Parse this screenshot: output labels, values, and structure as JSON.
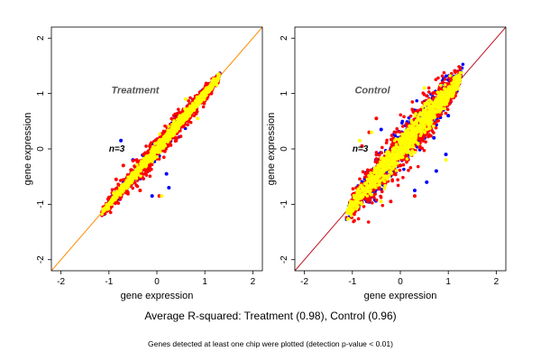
{
  "figure": {
    "summary": "Average R-squared: Treatment (0.98), Control (0.96)",
    "note": "Genes detected at least one chip were plotted (detection p-value < 0.01)"
  },
  "colors": {
    "point_series": [
      "#0000ff",
      "#ff0000",
      "#ffff00"
    ],
    "diagonal": "#ff8c00",
    "diagonal_control": "#c01020"
  },
  "chart_data": [
    {
      "type": "scatter",
      "title": "Treatment",
      "annotation": "n=3",
      "xlabel": "gene expression",
      "ylabel": "gene expression",
      "xlim": [
        -2.2,
        2.2
      ],
      "ylim": [
        -2.2,
        2.2
      ],
      "xticks": [
        -2,
        -1,
        0,
        1,
        2
      ],
      "yticks": [
        -2,
        -1,
        0,
        1,
        2
      ],
      "grid": false,
      "reference_line": "y = x",
      "series_colors": [
        "blue",
        "red",
        "yellow"
      ],
      "point_cloud": {
        "x_range": [
          -1.15,
          1.3
        ],
        "points_per_color": 1000
      },
      "spread": {
        "blue": 0.06,
        "red": 0.1,
        "yellow": 0.05
      },
      "outliers": {
        "blue": [
          [
            -0.75,
            0.15
          ],
          [
            -0.1,
            -0.85
          ],
          [
            0.25,
            -0.7
          ],
          [
            -0.5,
            -0.2
          ],
          [
            0.2,
            -0.45
          ]
        ],
        "red": [
          [
            -0.85,
            -0.55
          ],
          [
            -0.6,
            -0.6
          ],
          [
            -0.35,
            -0.75
          ],
          [
            0.05,
            -0.85
          ],
          [
            -0.7,
            -0.3
          ],
          [
            0.4,
            0.15
          ]
        ],
        "yellow": [
          [
            0.1,
            -0.85
          ],
          [
            0.85,
            0.55
          ],
          [
            0.6,
            0.9
          ],
          [
            -0.9,
            -0.8
          ],
          [
            1.25,
            1.15
          ]
        ]
      }
    },
    {
      "type": "scatter",
      "title": "Control",
      "annotation": "n=3",
      "xlabel": "gene expression",
      "ylabel": "gene expression",
      "xlim": [
        -2.2,
        2.2
      ],
      "ylim": [
        -2.2,
        2.2
      ],
      "xticks": [
        -2,
        -1,
        0,
        1,
        2
      ],
      "yticks": [
        -2,
        -1,
        0,
        1,
        2
      ],
      "grid": false,
      "reference_line": "y = x",
      "series_colors": [
        "blue",
        "red",
        "yellow"
      ],
      "point_cloud": {
        "x_range": [
          -1.1,
          1.25
        ],
        "points_per_color": 1000
      },
      "spread": {
        "blue": 0.17,
        "red": 0.2,
        "yellow": 0.12
      },
      "outliers": {
        "blue": [
          [
            0.55,
            -0.6
          ],
          [
            0.75,
            -0.4
          ],
          [
            0.95,
            -0.1
          ],
          [
            0.7,
            0.2
          ],
          [
            -0.4,
            0.35
          ],
          [
            1.0,
            0.6
          ],
          [
            0.3,
            -0.75
          ]
        ],
        "red": [
          [
            -0.8,
            0.05
          ],
          [
            -0.5,
            0.55
          ],
          [
            -0.2,
            -0.95
          ],
          [
            -0.65,
            0.3
          ],
          [
            0.3,
            -0.85
          ]
        ],
        "yellow": [
          [
            -0.85,
            0.15
          ],
          [
            0.5,
            1.1
          ],
          [
            -0.6,
            0.3
          ],
          [
            0.95,
            -0.2
          ],
          [
            -0.4,
            -0.95
          ]
        ]
      }
    }
  ]
}
